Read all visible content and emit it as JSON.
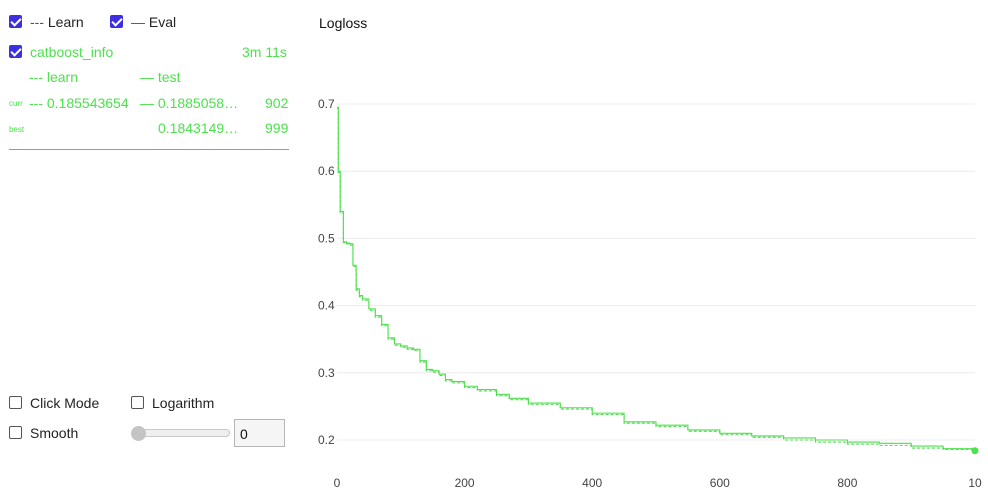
{
  "legend_top": {
    "learn": {
      "label": "Learn",
      "prefix": "---",
      "checked": true
    },
    "eval": {
      "label": "Eval",
      "prefix": "—",
      "checked": true
    }
  },
  "run": {
    "name": "catboost_info",
    "checked": true,
    "duration": "3m 11s",
    "col_learn": "--- learn",
    "col_test": "— test",
    "curr_label": "curr",
    "curr_learn": "--- 0.185543654",
    "curr_test": "— 0.1885058…",
    "curr_iter": "902",
    "best_label": "best",
    "best_test": "0.1843149…",
    "best_iter": "999"
  },
  "controls": {
    "click_mode": {
      "label": "Click Mode",
      "checked": false
    },
    "logarithm": {
      "label": "Logarithm",
      "checked": false
    },
    "smooth": {
      "label": "Smooth",
      "checked": false
    },
    "smooth_value": "0",
    "slider_value": 0
  },
  "colors": {
    "series": "#4ee04e",
    "accent": "#3d2fe0"
  },
  "chart_data": {
    "type": "line",
    "title": "Logloss",
    "xlabel": "",
    "ylabel": "",
    "xlim": [
      0,
      1000
    ],
    "ylim": [
      0.18,
      0.7
    ],
    "xticks": [
      "0",
      "200",
      "400",
      "600",
      "800",
      "10"
    ],
    "yticks": [
      "0.7",
      "0.6",
      "0.5",
      "0.4",
      "0.3",
      "0.2"
    ],
    "grid": "horizontal",
    "series": [
      {
        "name": "test",
        "style": "solid",
        "x": [
          0,
          2,
          5,
          10,
          15,
          20,
          25,
          30,
          35,
          40,
          50,
          60,
          70,
          80,
          90,
          100,
          110,
          120,
          130,
          140,
          150,
          160,
          170,
          180,
          200,
          220,
          250,
          270,
          300,
          350,
          400,
          450,
          500,
          550,
          600,
          650,
          700,
          750,
          800,
          850,
          900,
          950,
          1000
        ],
        "y": [
          0.695,
          0.6,
          0.54,
          0.495,
          0.493,
          0.492,
          0.46,
          0.425,
          0.415,
          0.41,
          0.395,
          0.385,
          0.372,
          0.352,
          0.343,
          0.34,
          0.337,
          0.335,
          0.318,
          0.305,
          0.303,
          0.298,
          0.29,
          0.287,
          0.28,
          0.275,
          0.268,
          0.262,
          0.255,
          0.248,
          0.24,
          0.227,
          0.222,
          0.215,
          0.21,
          0.206,
          0.203,
          0.2,
          0.197,
          0.195,
          0.191,
          0.187,
          0.184
        ]
      },
      {
        "name": "learn",
        "style": "dashed",
        "x": [
          0,
          2,
          5,
          10,
          15,
          20,
          25,
          30,
          35,
          40,
          50,
          60,
          70,
          80,
          90,
          100,
          110,
          120,
          130,
          140,
          150,
          160,
          170,
          180,
          200,
          220,
          250,
          270,
          300,
          350,
          400,
          450,
          500,
          550,
          600,
          650,
          700,
          750,
          800,
          850,
          900,
          950,
          1000
        ],
        "y": [
          0.694,
          0.598,
          0.538,
          0.494,
          0.492,
          0.49,
          0.458,
          0.423,
          0.413,
          0.408,
          0.393,
          0.383,
          0.37,
          0.35,
          0.341,
          0.338,
          0.335,
          0.333,
          0.316,
          0.303,
          0.301,
          0.296,
          0.288,
          0.285,
          0.278,
          0.273,
          0.266,
          0.26,
          0.253,
          0.246,
          0.238,
          0.225,
          0.22,
          0.213,
          0.208,
          0.204,
          0.2,
          0.197,
          0.194,
          0.192,
          0.188,
          0.186,
          0.185
        ]
      }
    ]
  }
}
